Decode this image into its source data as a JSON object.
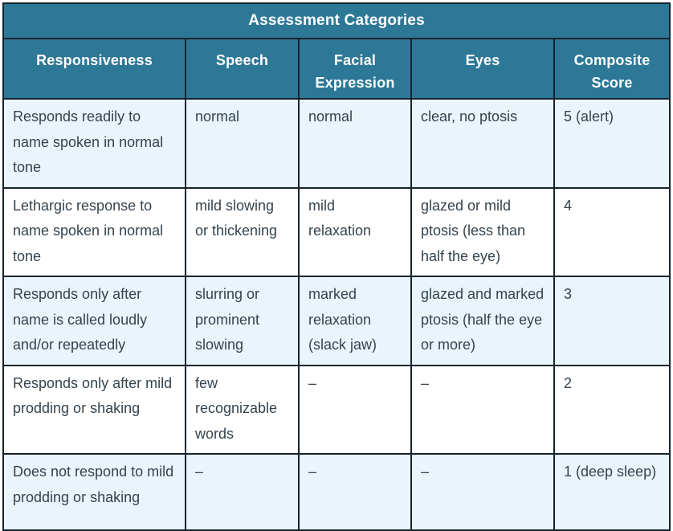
{
  "table": {
    "title": "Assessment Categories",
    "columns": [
      "Responsiveness",
      "Speech",
      "Facial Expression",
      "Eyes",
      "Composite Score"
    ],
    "rows": [
      [
        "Responds readily to name spoken in normal tone",
        "normal",
        "normal",
        "clear, no ptosis",
        "5 (alert)"
      ],
      [
        "Lethargic response to name spoken in normal tone",
        "mild slowing or thickening",
        "mild relaxation",
        "glazed or mild ptosis (less than half the eye)",
        "4"
      ],
      [
        "Responds only after name is called loudly and/or repeatedly",
        "slurring or prominent slowing",
        "marked relaxation (slack jaw)",
        "glazed and marked ptosis (half the eye or more)",
        "3"
      ],
      [
        "Responds only after mild prodding or shaking",
        "few recognizable words",
        "–",
        "–",
        "2"
      ],
      [
        "Does not respond to mild prodding or shaking",
        "–",
        "–",
        "–",
        "1 (deep sleep)"
      ]
    ],
    "colors": {
      "header_bg": "#2d7897",
      "header_text": "#ffffff",
      "row_alt_bg": "#e9f4fb",
      "row_bg": "#ffffff",
      "body_text": "#36434e",
      "border": "#15242e"
    }
  }
}
